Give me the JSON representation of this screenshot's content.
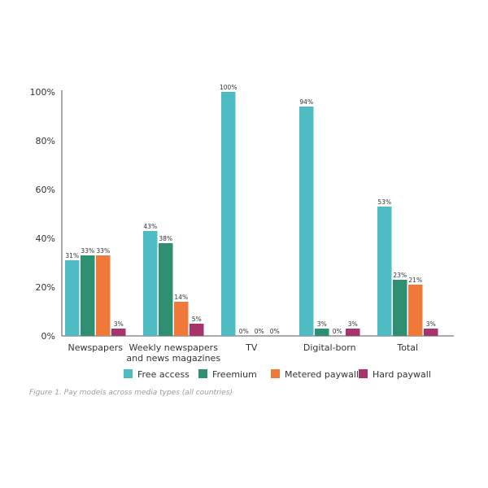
{
  "caption": "Figure 1. Pay models across media types (all countries)",
  "chart_data": {
    "type": "bar",
    "title": "",
    "xlabel": "",
    "ylabel": "",
    "ylim": [
      0,
      100
    ],
    "yticks": [
      "0%",
      "20%",
      "40%",
      "60%",
      "80%",
      "100%"
    ],
    "grid": false,
    "legend_position": "bottom",
    "categories": [
      [
        "Newspapers"
      ],
      [
        "Weekly newspapers",
        "and news magazines"
      ],
      [
        "TV"
      ],
      [
        "Digital-born"
      ],
      [
        "Total"
      ]
    ],
    "series": [
      {
        "name": "Free access",
        "color": "#4dbcc3",
        "values": [
          31,
          43,
          100,
          94,
          53
        ],
        "labels": [
          "31%",
          "43%",
          "100%",
          "94%",
          "53%"
        ]
      },
      {
        "name": "Freemium",
        "color": "#2e8f72",
        "values": [
          33,
          38,
          0,
          3,
          23
        ],
        "labels": [
          "33%",
          "38%",
          "0%",
          "3%",
          "23%"
        ]
      },
      {
        "name": "Metered paywall",
        "color": "#f0783a",
        "values": [
          33,
          14,
          0,
          0,
          21
        ],
        "labels": [
          "33%",
          "14%",
          "0%",
          "0%",
          "21%"
        ]
      },
      {
        "name": "Hard paywall",
        "color": "#a8326a",
        "values": [
          3,
          5,
          0,
          3,
          3
        ],
        "labels": [
          "3%",
          "5%",
          "0%",
          "3%",
          "3%"
        ]
      }
    ]
  }
}
